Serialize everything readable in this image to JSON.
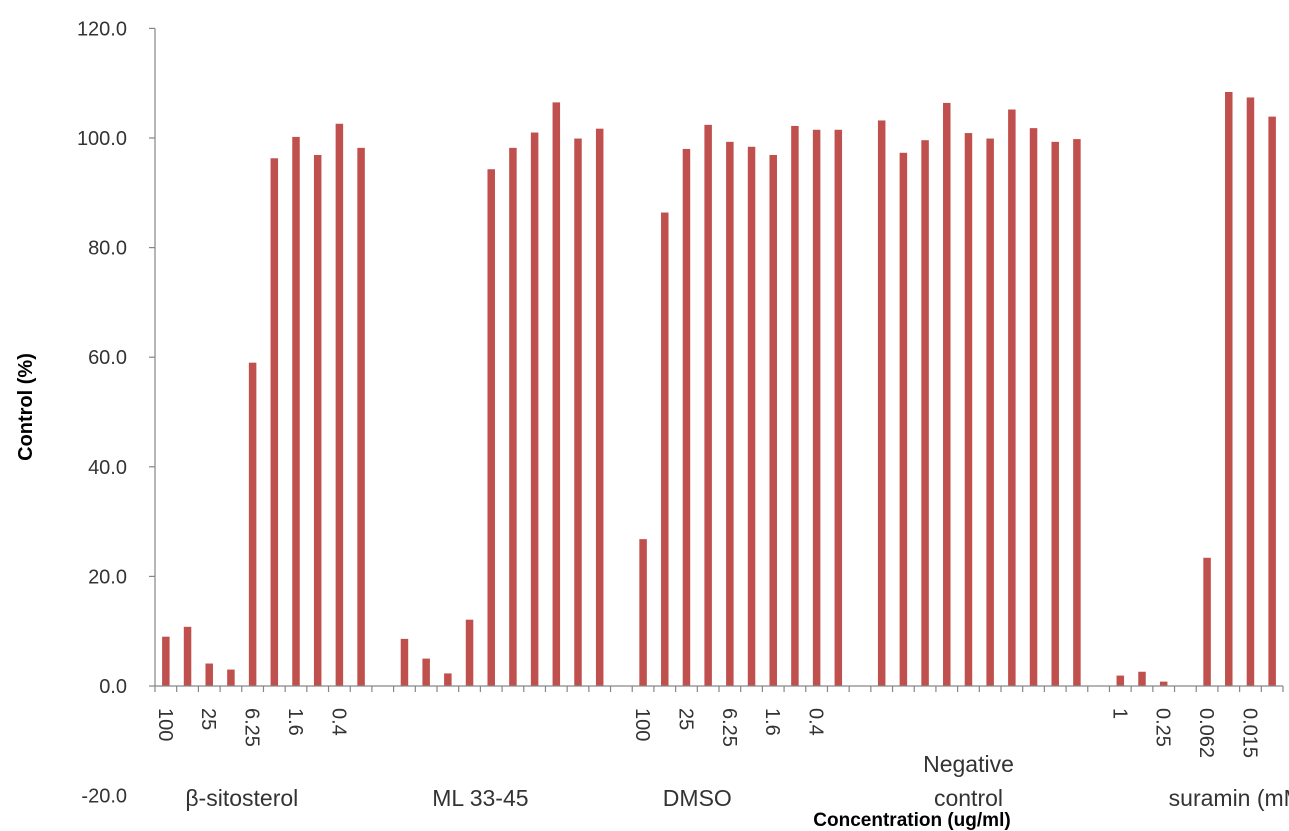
{
  "chart_data": {
    "type": "bar",
    "ylabel": "Control (%)",
    "xlabel": "Concentration (ug/ml)",
    "ylim": [
      -20,
      120
    ],
    "y_ticks": [
      -20,
      0,
      20,
      40,
      60,
      80,
      100,
      120
    ],
    "y_tick_format": "one-decimal",
    "color": "#C0504D",
    "grid": false,
    "legend": "none",
    "values": [
      9.0,
      10.8,
      4.1,
      3.0,
      59.0,
      96.3,
      100.2,
      96.9,
      102.6,
      98.2,
      null,
      8.6,
      5.0,
      2.3,
      12.1,
      94.3,
      98.2,
      101.0,
      106.5,
      99.9,
      101.7,
      null,
      26.8,
      86.4,
      98.0,
      102.4,
      99.3,
      98.4,
      96.9,
      102.2,
      101.5,
      101.5,
      null,
      103.2,
      97.3,
      99.6,
      106.4,
      100.9,
      99.9,
      105.2,
      101.8,
      99.3,
      99.8,
      null,
      1.9,
      2.6,
      0.8,
      null,
      23.4,
      108.4,
      107.4,
      103.9
    ],
    "tick_labels": [
      {
        "text": "100",
        "at": 0
      },
      {
        "text": "25",
        "at": 2
      },
      {
        "text": "6.25",
        "at": 4
      },
      {
        "text": "1.6",
        "at": 6
      },
      {
        "text": "0.4",
        "at": 8
      },
      {
        "text": "100",
        "at": 22
      },
      {
        "text": "25",
        "at": 24
      },
      {
        "text": "6.25",
        "at": 26
      },
      {
        "text": "1.6",
        "at": 28
      },
      {
        "text": "0.4",
        "at": 30
      },
      {
        "text": "1",
        "at": 44
      },
      {
        "text": "0.25",
        "at": 46
      },
      {
        "text": "0.062",
        "at": 48
      },
      {
        "text": "0.015",
        "at": 50
      }
    ],
    "group_labels": [
      {
        "lines": [
          "β-sitosterol"
        ],
        "at": 3.5
      },
      {
        "lines": [
          "ML 33-45"
        ],
        "at": 14.5
      },
      {
        "lines": [
          "DMSO"
        ],
        "at": 24.5
      },
      {
        "lines": [
          "Negative",
          "control"
        ],
        "at": 37
      },
      {
        "lines": [
          "suramin (mM)"
        ],
        "at": 49.5
      }
    ]
  }
}
